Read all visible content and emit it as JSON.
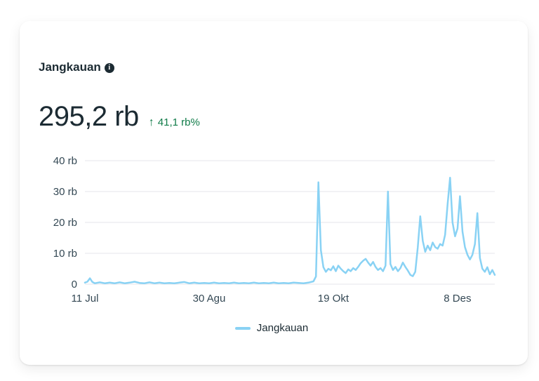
{
  "card": {
    "title": "Jangkauan",
    "info_icon_glyph": "i"
  },
  "metric": {
    "value": "295,2 rb",
    "trend_arrow": "↑",
    "delta": "41,1 rb%",
    "delta_color": "#0f7b48"
  },
  "legend": {
    "label": "Jangkauan",
    "swatch_color": "#89d2f4"
  },
  "chart_data": {
    "type": "line",
    "title": "Jangkauan",
    "xlabel": "",
    "ylabel": "",
    "unit": "rb (ribu = thousands)",
    "xlim": [
      0,
      165
    ],
    "ylim": [
      0,
      40
    ],
    "grid": "horizontal",
    "legend_position": "bottom-center",
    "line_color": "#89d2f4",
    "grid_color": "#e4e6eb",
    "axis_text_color": "#344854",
    "x_ticks": [
      {
        "pos": 0,
        "label": "11 Jul"
      },
      {
        "pos": 50,
        "label": "30 Agu"
      },
      {
        "pos": 100,
        "label": "19 Okt"
      },
      {
        "pos": 150,
        "label": "8 Des"
      }
    ],
    "y_ticks": [
      {
        "value": 0,
        "label": "0"
      },
      {
        "value": 10,
        "label": "10 rb"
      },
      {
        "value": 20,
        "label": "20 rb"
      },
      {
        "value": 30,
        "label": "30 rb"
      },
      {
        "value": 40,
        "label": "40 rb"
      }
    ],
    "series": [
      {
        "name": "Jangkauan",
        "points": [
          [
            0,
            0.5
          ],
          [
            1,
            0.8
          ],
          [
            2,
            1.9
          ],
          [
            3,
            0.7
          ],
          [
            4,
            0.3
          ],
          [
            6,
            0.6
          ],
          [
            8,
            0.3
          ],
          [
            10,
            0.5
          ],
          [
            12,
            0.3
          ],
          [
            14,
            0.6
          ],
          [
            16,
            0.3
          ],
          [
            18,
            0.5
          ],
          [
            20,
            0.8
          ],
          [
            22,
            0.4
          ],
          [
            24,
            0.3
          ],
          [
            26,
            0.6
          ],
          [
            28,
            0.3
          ],
          [
            30,
            0.5
          ],
          [
            32,
            0.3
          ],
          [
            34,
            0.4
          ],
          [
            36,
            0.3
          ],
          [
            38,
            0.5
          ],
          [
            40,
            0.7
          ],
          [
            42,
            0.3
          ],
          [
            44,
            0.5
          ],
          [
            46,
            0.3
          ],
          [
            48,
            0.4
          ],
          [
            50,
            0.3
          ],
          [
            52,
            0.5
          ],
          [
            54,
            0.3
          ],
          [
            56,
            0.4
          ],
          [
            58,
            0.3
          ],
          [
            60,
            0.5
          ],
          [
            62,
            0.3
          ],
          [
            64,
            0.4
          ],
          [
            66,
            0.3
          ],
          [
            68,
            0.5
          ],
          [
            70,
            0.3
          ],
          [
            72,
            0.4
          ],
          [
            74,
            0.3
          ],
          [
            76,
            0.5
          ],
          [
            78,
            0.3
          ],
          [
            80,
            0.4
          ],
          [
            82,
            0.3
          ],
          [
            84,
            0.5
          ],
          [
            86,
            0.4
          ],
          [
            88,
            0.3
          ],
          [
            90,
            0.5
          ],
          [
            92,
            0.9
          ],
          [
            93,
            2.5
          ],
          [
            94,
            33
          ],
          [
            95,
            11
          ],
          [
            96,
            5.5
          ],
          [
            97,
            4
          ],
          [
            98,
            5
          ],
          [
            99,
            4.5
          ],
          [
            100,
            5.8
          ],
          [
            101,
            4.2
          ],
          [
            102,
            6
          ],
          [
            103,
            5
          ],
          [
            104,
            4.2
          ],
          [
            105,
            3.6
          ],
          [
            106,
            4.8
          ],
          [
            107,
            4.2
          ],
          [
            108,
            5.2
          ],
          [
            109,
            4.6
          ],
          [
            110,
            5.6
          ],
          [
            111,
            6.8
          ],
          [
            112,
            7.6
          ],
          [
            113,
            8.2
          ],
          [
            114,
            7
          ],
          [
            115,
            6
          ],
          [
            116,
            7.2
          ],
          [
            117,
            5.6
          ],
          [
            118,
            4.6
          ],
          [
            119,
            5.2
          ],
          [
            120,
            4.2
          ],
          [
            121,
            6
          ],
          [
            122,
            30
          ],
          [
            123,
            6.5
          ],
          [
            124,
            4.6
          ],
          [
            125,
            5.6
          ],
          [
            126,
            4.2
          ],
          [
            127,
            5.2
          ],
          [
            128,
            7
          ],
          [
            129,
            5.6
          ],
          [
            130,
            4.4
          ],
          [
            131,
            3
          ],
          [
            132,
            2.6
          ],
          [
            133,
            4
          ],
          [
            134,
            12
          ],
          [
            135,
            22
          ],
          [
            136,
            14
          ],
          [
            137,
            10.5
          ],
          [
            138,
            12.5
          ],
          [
            139,
            11
          ],
          [
            140,
            13.5
          ],
          [
            141,
            12
          ],
          [
            142,
            11.5
          ],
          [
            143,
            13
          ],
          [
            144,
            12.5
          ],
          [
            145,
            16
          ],
          [
            146,
            26
          ],
          [
            147,
            34.5
          ],
          [
            148,
            20
          ],
          [
            149,
            15.5
          ],
          [
            150,
            18
          ],
          [
            151,
            28.5
          ],
          [
            152,
            17
          ],
          [
            153,
            12
          ],
          [
            154,
            9.5
          ],
          [
            155,
            8
          ],
          [
            156,
            9.5
          ],
          [
            157,
            13
          ],
          [
            158,
            23
          ],
          [
            159,
            8.5
          ],
          [
            160,
            5
          ],
          [
            161,
            4
          ],
          [
            162,
            5.5
          ],
          [
            163,
            3.2
          ],
          [
            164,
            4.6
          ],
          [
            165,
            3
          ]
        ]
      }
    ]
  }
}
